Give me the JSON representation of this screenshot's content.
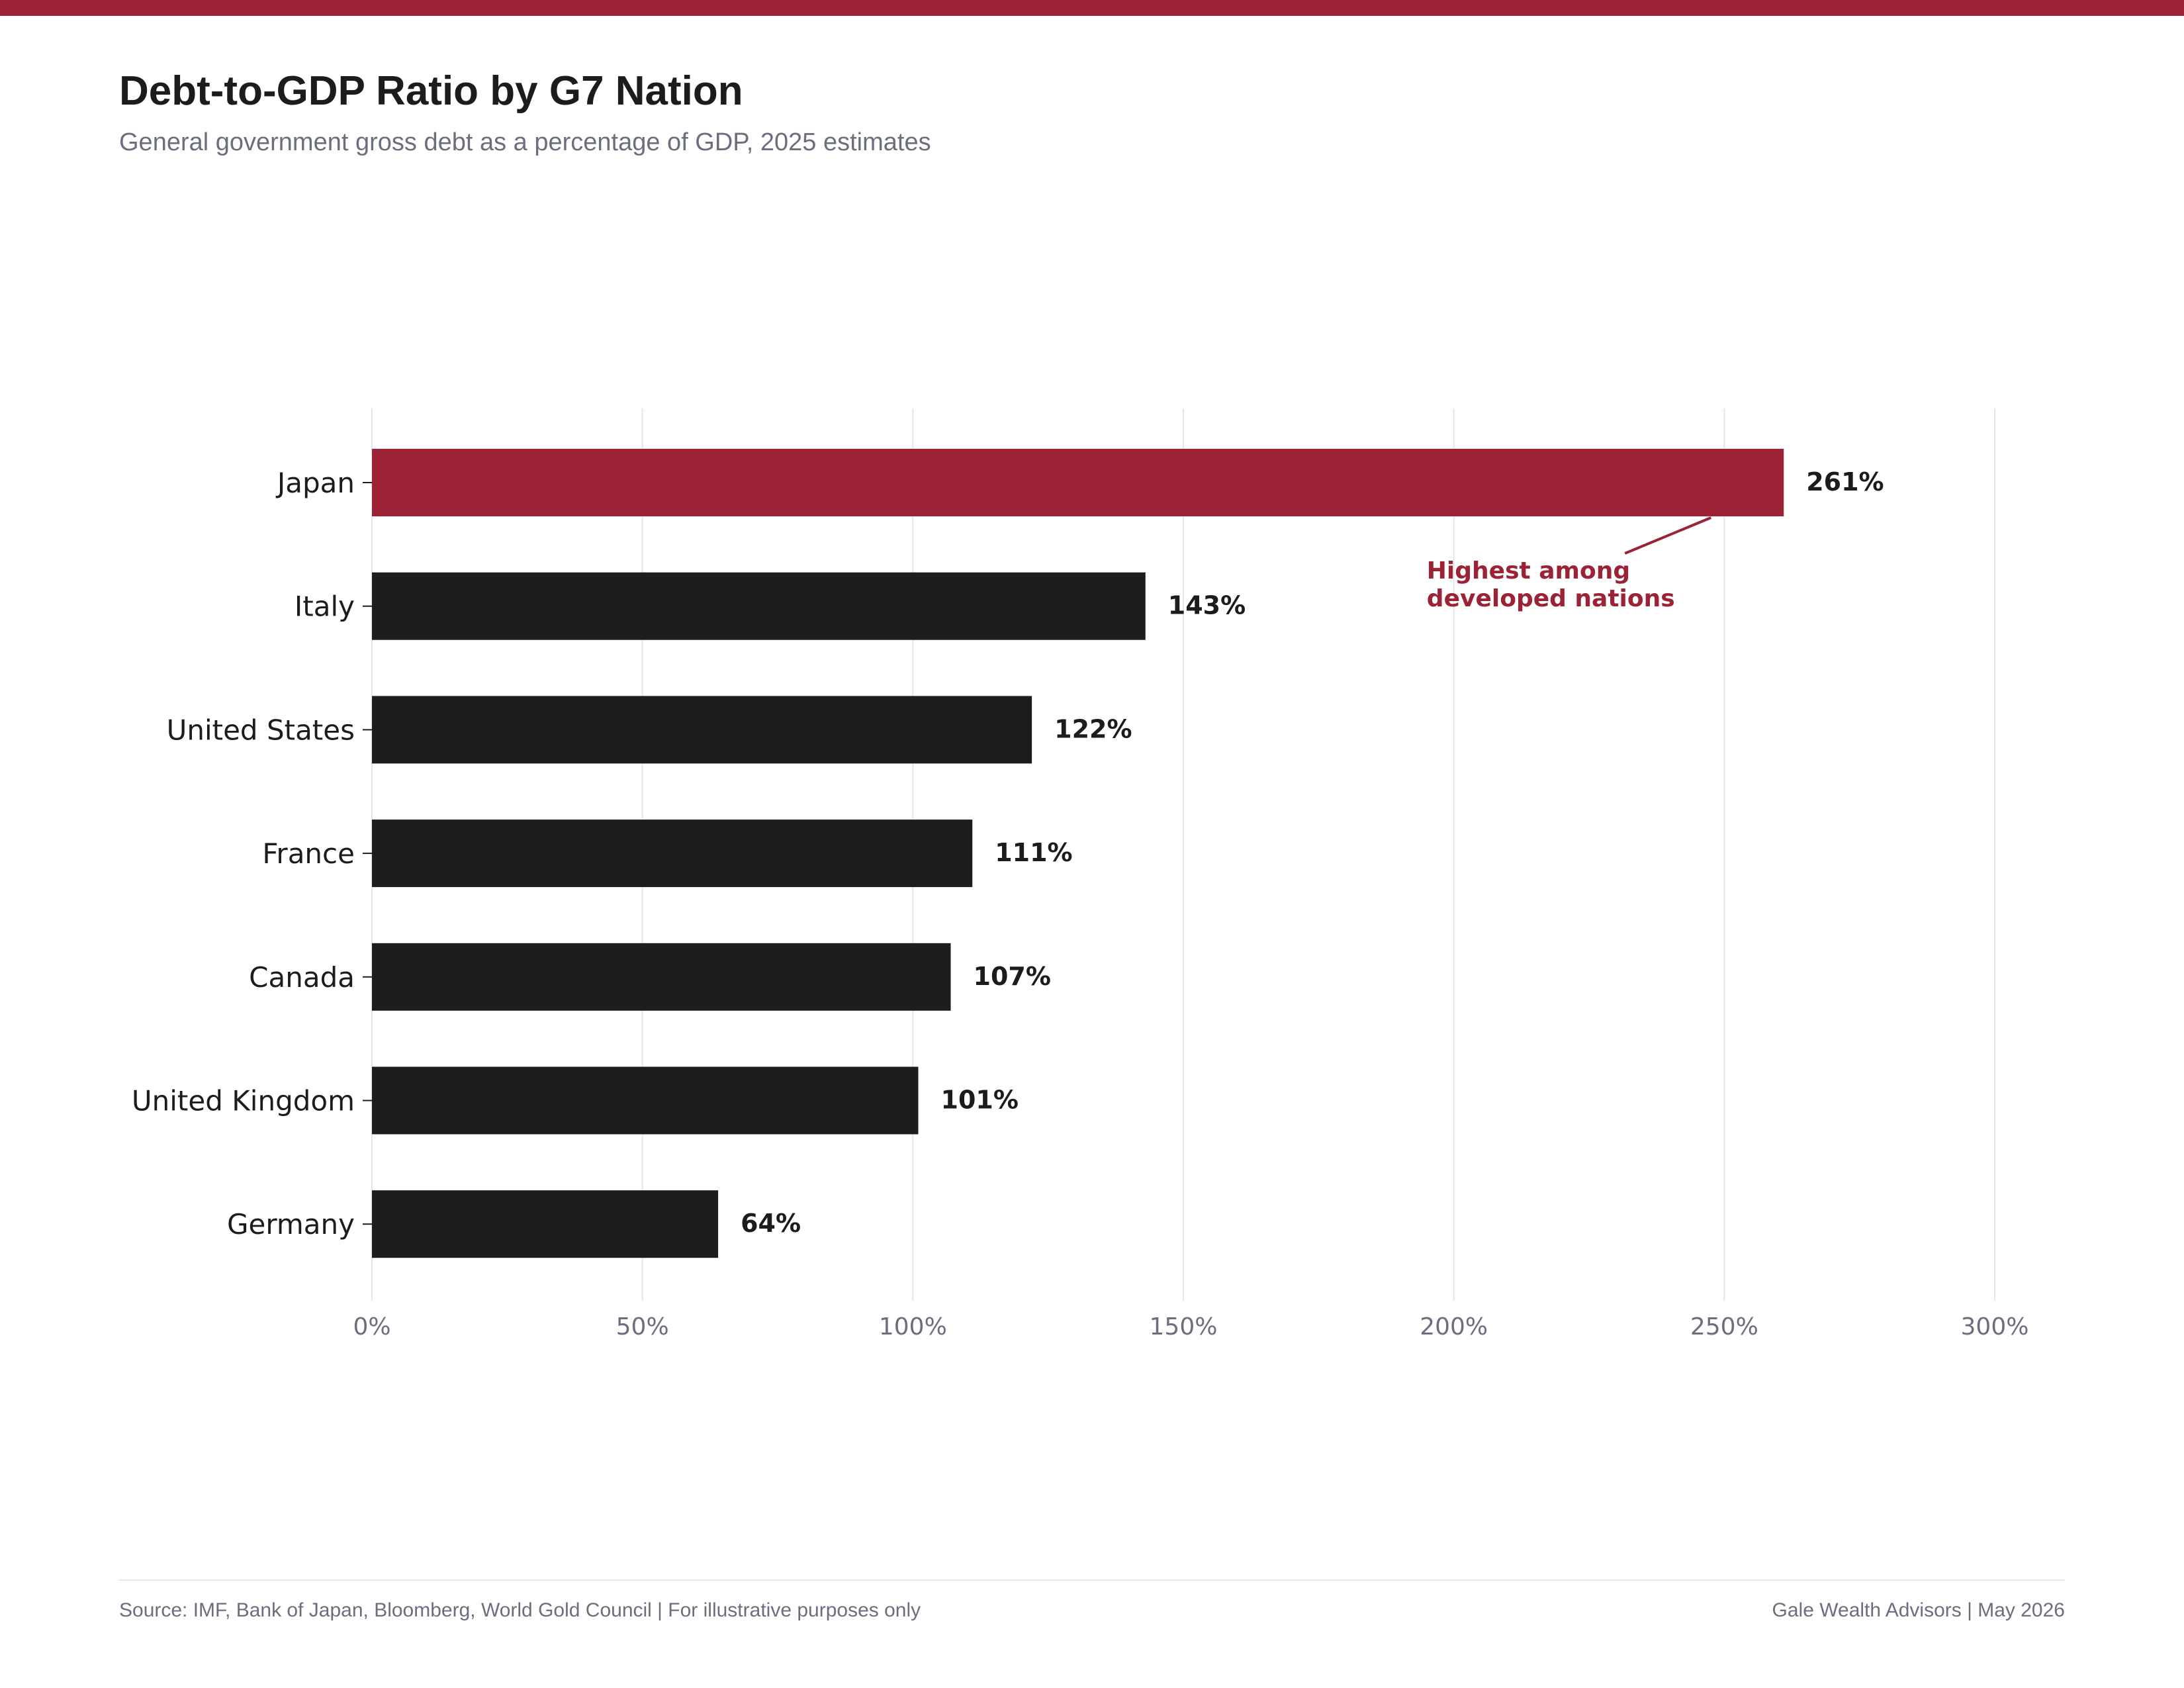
{
  "header": {
    "title": "Debt-to-GDP Ratio by G7 Nation",
    "subtitle": "General government gross debt as a percentage of GDP, 2025 estimates"
  },
  "footer": {
    "source": "Source: IMF, Bank of Japan, Bloomberg, World Gold Council  |  For illustrative purposes only",
    "credit": "Gale Wealth Advisors  |  May 2026"
  },
  "colors": {
    "accent": "#9b2335",
    "bar": "#1d1d1d",
    "grid": "#e6e6e6",
    "muted_text": "#6b6f7d",
    "text": "#1c1c1c"
  },
  "chart_data": {
    "type": "bar",
    "orientation": "horizontal",
    "categories": [
      "Japan",
      "Italy",
      "United States",
      "France",
      "Canada",
      "United Kingdom",
      "Germany"
    ],
    "values": [
      261,
      143,
      122,
      111,
      107,
      101,
      64
    ],
    "value_labels": [
      "261%",
      "143%",
      "122%",
      "111%",
      "107%",
      "101%",
      "64%"
    ],
    "highlight_index": 0,
    "xlim": [
      0,
      300
    ],
    "xticks": [
      0,
      50,
      100,
      150,
      200,
      250,
      300
    ],
    "xtick_labels": [
      "0%",
      "50%",
      "100%",
      "150%",
      "200%",
      "250%",
      "300%"
    ],
    "grid": "vertical",
    "annotation": {
      "lines": [
        "Highest among",
        "developed nations"
      ],
      "target_category": "Japan"
    }
  }
}
